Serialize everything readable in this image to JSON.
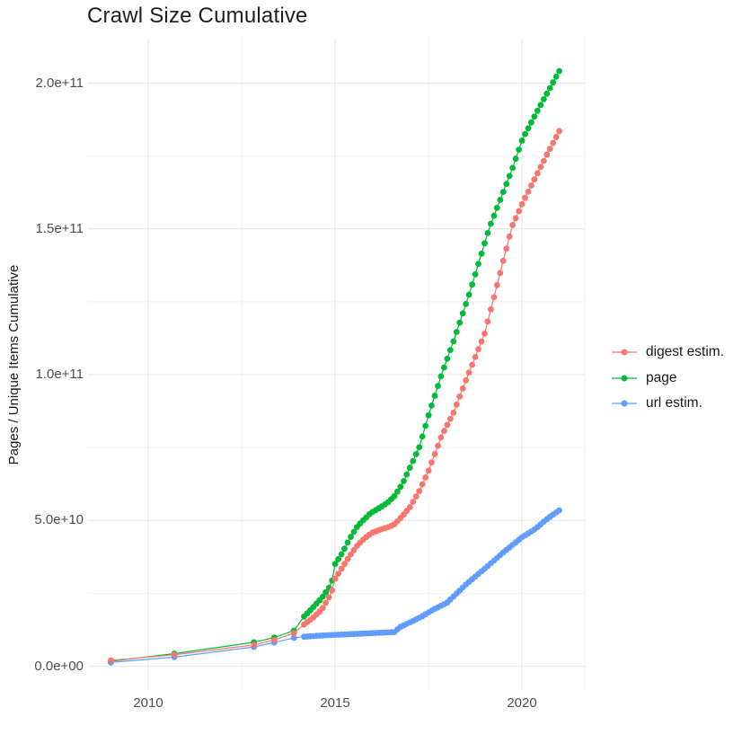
{
  "chart_data": {
    "type": "line",
    "title": "Crawl Size Cumulative",
    "xlabel": "",
    "ylabel": "Pages / Unique Items Cumulative",
    "legend_position": "right",
    "grid": true,
    "background": "#ffffff",
    "grid_major_color": "#e8e8e8",
    "grid_minor_color": "#f2f2f2",
    "axis_text_color": "#4d4d4d",
    "x_range": [
      2008.4,
      2021.7
    ],
    "y_range": [
      -10200000000,
      215200000000
    ],
    "x_ticks": [
      {
        "value": 2010,
        "label": "2010"
      },
      {
        "value": 2015,
        "label": "2015"
      },
      {
        "value": 2020,
        "label": "2020"
      }
    ],
    "x_minor_ticks": [
      2012.5,
      2017.5
    ],
    "y_ticks": [
      {
        "value_billions": 0,
        "label": "0.0e+00"
      },
      {
        "value_billions": 50,
        "label": "5.0e+10"
      },
      {
        "value_billions": 100,
        "label": "1.0e+11"
      },
      {
        "value_billions": 150,
        "label": "1.5e+11"
      },
      {
        "value_billions": 200,
        "label": "2.0e+11"
      }
    ],
    "y_minor_ticks_billions": [
      25,
      75,
      125,
      175
    ],
    "units_note": "values are billions of pages / unique items (1 = 1e9)",
    "crawl_dates_sparse": [
      2009.0,
      2010.7,
      2012.83,
      2013.37,
      2013.9
    ],
    "dense_dots": {
      "start": 2014.17,
      "end": 2021.06,
      "step": 0.0833
    },
    "series": [
      {
        "name": "digest estim.",
        "color": "#F8766D",
        "draw_index": 2,
        "knots": [
          [
            2009.0,
            2.0
          ],
          [
            2010.7,
            3.9
          ],
          [
            2012.83,
            7.3
          ],
          [
            2013.37,
            9.0
          ],
          [
            2013.9,
            11.3
          ],
          [
            2014.17,
            14.3
          ],
          [
            2014.4,
            16.5
          ],
          [
            2014.65,
            19.5
          ],
          [
            2014.9,
            25
          ],
          [
            2015.0,
            30
          ],
          [
            2015.2,
            34
          ],
          [
            2015.4,
            38
          ],
          [
            2015.6,
            41.5
          ],
          [
            2015.8,
            44
          ],
          [
            2016.0,
            45.8
          ],
          [
            2016.2,
            46.8
          ],
          [
            2016.45,
            47.8
          ],
          [
            2016.6,
            48.8
          ],
          [
            2016.8,
            51.5
          ],
          [
            2017.0,
            54.5
          ],
          [
            2017.25,
            60
          ],
          [
            2017.5,
            67
          ],
          [
            2017.85,
            79
          ],
          [
            2018.17,
            87
          ],
          [
            2018.5,
            98
          ],
          [
            2019.0,
            114
          ],
          [
            2019.74,
            151
          ],
          [
            2020.02,
            159
          ],
          [
            2020.65,
            175
          ],
          [
            2021.06,
            185
          ]
        ]
      },
      {
        "name": "page",
        "color": "#00BA38",
        "draw_index": 0,
        "knots": [
          [
            2009.0,
            1.7
          ],
          [
            2010.7,
            4.3
          ],
          [
            2012.83,
            8.2
          ],
          [
            2013.37,
            9.8
          ],
          [
            2013.9,
            12.2
          ],
          [
            2014.17,
            17
          ],
          [
            2014.4,
            20
          ],
          [
            2014.65,
            23.5
          ],
          [
            2014.9,
            28
          ],
          [
            2015.0,
            35
          ],
          [
            2015.2,
            39
          ],
          [
            2015.4,
            44
          ],
          [
            2015.6,
            48
          ],
          [
            2015.75,
            50
          ],
          [
            2015.95,
            52.5
          ],
          [
            2016.15,
            54
          ],
          [
            2016.4,
            56
          ],
          [
            2016.6,
            58.5
          ],
          [
            2016.8,
            62.5
          ],
          [
            2017.0,
            68
          ],
          [
            2017.25,
            75
          ],
          [
            2017.5,
            86
          ],
          [
            2017.85,
            100
          ],
          [
            2018.17,
            111.5
          ],
          [
            2018.6,
            128
          ],
          [
            2019.13,
            150.5
          ],
          [
            2019.74,
            170.5
          ],
          [
            2020.02,
            181
          ],
          [
            2020.5,
            192.5
          ],
          [
            2021.06,
            205.5
          ]
        ]
      },
      {
        "name": "url estim.",
        "color": "#619CFF",
        "draw_index": 1,
        "knots": [
          [
            2009.0,
            1.3
          ],
          [
            2010.7,
            3.1
          ],
          [
            2012.83,
            6.6
          ],
          [
            2013.37,
            8.1
          ],
          [
            2013.9,
            9.7
          ],
          [
            2014.17,
            10.1
          ],
          [
            2014.6,
            10.5
          ],
          [
            2015.1,
            10.8
          ],
          [
            2015.6,
            11.1
          ],
          [
            2016.1,
            11.4
          ],
          [
            2016.6,
            11.7
          ],
          [
            2016.72,
            13.3
          ],
          [
            2017.0,
            15.0
          ],
          [
            2017.3,
            16.9
          ],
          [
            2017.6,
            19.2
          ],
          [
            2018.0,
            21.8
          ],
          [
            2018.5,
            28
          ],
          [
            2019.0,
            33.4
          ],
          [
            2019.5,
            39
          ],
          [
            2020.0,
            44.2
          ],
          [
            2020.35,
            47
          ],
          [
            2020.7,
            50.8
          ],
          [
            2021.06,
            54
          ]
        ]
      }
    ]
  }
}
